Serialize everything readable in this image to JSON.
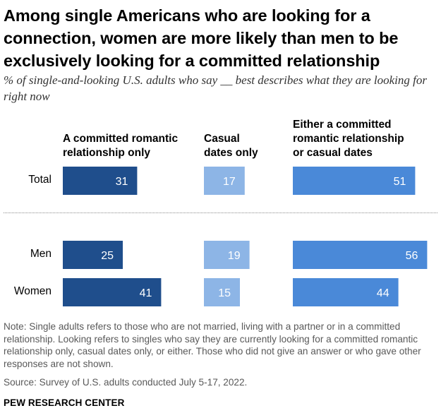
{
  "title": "Among single Americans who are looking for a connection, women are more likely than men to be exclusively looking for a committed relationship",
  "subtitle": "% of single-and-looking U.S. adults who say __ best describes what they are looking for right now",
  "note": "Note: Single adults refers to those who are not married, living with a partner or in a committed relationship. Looking refers to singles who say they are currently looking for a committed romantic relationship only, casual dates only, or either. Those who did not give an answer or who gave other responses are not shown.",
  "source": "Source: Survey of U.S. adults conducted July 5-17, 2022.",
  "brand": "PEW RESEARCH CENTER",
  "colors": {
    "dark_blue": "#1f4e8c",
    "light_blue": "#8db5e6",
    "medium_blue": "#4a89d8"
  },
  "chart_data": {
    "type": "bar",
    "orientation": "horizontal",
    "categories": [
      "Total",
      "Men",
      "Women"
    ],
    "series": [
      {
        "name": "A committed romantic relationship only",
        "values": [
          31,
          25,
          41
        ],
        "color": "#1f4e8c"
      },
      {
        "name": "Casual dates only",
        "values": [
          17,
          19,
          15
        ],
        "color": "#8db5e6"
      },
      {
        "name": "Either a committed romantic relationship or casual dates",
        "values": [
          51,
          56,
          44
        ],
        "color": "#4a89d8"
      }
    ],
    "xlim": [
      0,
      100
    ],
    "grid": false,
    "legend": "column headers above bars"
  }
}
